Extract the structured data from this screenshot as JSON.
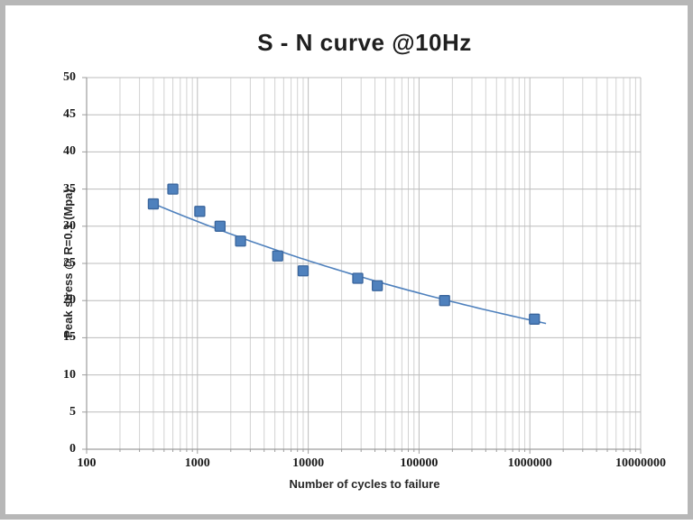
{
  "chart_data": {
    "type": "scatter",
    "title": "S - N curve @10Hz",
    "xlabel": "Number of cycles to failure",
    "ylabel": "Peak stress @ R=0.1 (Mpa)",
    "x_scale": "log",
    "xlim": [
      100,
      10000000
    ],
    "ylim": [
      0,
      50
    ],
    "x_ticks": [
      100,
      1000,
      10000,
      100000,
      1000000,
      10000000
    ],
    "x_tick_labels": [
      "100",
      "1000",
      "10000",
      "100000",
      "1000000",
      "10000000"
    ],
    "y_ticks": [
      0,
      5,
      10,
      15,
      20,
      25,
      30,
      35,
      40,
      45,
      50
    ],
    "grid": "horizontal major every 5; vertical log major + minor",
    "legend": "none",
    "series": [
      {
        "name": "measured-points",
        "marker": "square",
        "points": [
          [
            400,
            33
          ],
          [
            600,
            35
          ],
          [
            1050,
            32
          ],
          [
            1600,
            30
          ],
          [
            2450,
            28
          ],
          [
            5300,
            26
          ],
          [
            9000,
            24
          ],
          [
            28000,
            23
          ],
          [
            42000,
            22
          ],
          [
            170000,
            20
          ],
          [
            1100000,
            17.5
          ]
        ]
      },
      {
        "name": "power-trendline",
        "model": "S = 54 * N^-0.082",
        "a": 54,
        "b": -0.082,
        "x_range": [
          400,
          1400000
        ]
      }
    ],
    "colors": {
      "marker_fill": "#4f81bd",
      "marker_edge": "#3a659c",
      "trendline": "#4f81bd",
      "grid_major": "#bcbcbc",
      "grid_minor": "#d2d2d2",
      "axis_line": "#9d9d9d",
      "text": "#1f1f1f",
      "picture_border": "#b7b7b7"
    }
  }
}
